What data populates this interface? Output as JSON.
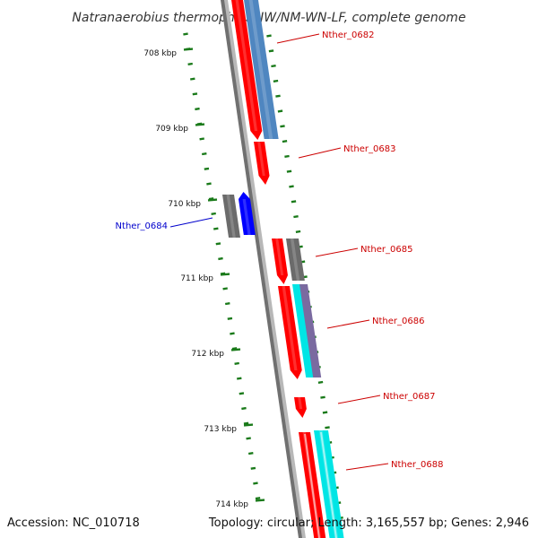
{
  "title": "Natranaerobius thermophilus JW/NM-WN-LF, complete genome",
  "footer": {
    "accession": "Accession: NC_010718",
    "summary": "Topology: circular; Length: 3,165,557 bp; Genes: 2,946"
  },
  "colors": {
    "backbone": "#8a8a8a",
    "tick": "#1a7a1a",
    "forward_label": "#cc0000",
    "reverse_label": "#0000cc",
    "cds_red": "#ff0000",
    "cds_blue_steel": "#4f86c0",
    "cds_gray": "#6b6b6b",
    "cds_cyan": "#00e5e5",
    "cds_purple": "#7a6aa0",
    "cds_blue": "#0000ff"
  },
  "ticks": [
    {
      "label": "708 kbp"
    },
    {
      "label": "709 kbp"
    },
    {
      "label": "710 kbp"
    },
    {
      "label": "711 kbp"
    },
    {
      "label": "712 kbp"
    },
    {
      "label": "713 kbp"
    },
    {
      "label": "714 kbp"
    }
  ],
  "gene_labels": [
    {
      "name": "Nther_0682",
      "strand": "forward"
    },
    {
      "name": "Nther_0683",
      "strand": "forward"
    },
    {
      "name": "Nther_0684",
      "strand": "reverse"
    },
    {
      "name": "Nther_0685",
      "strand": "forward"
    },
    {
      "name": "Nther_0686",
      "strand": "forward"
    },
    {
      "name": "Nther_0687",
      "strand": "forward"
    },
    {
      "name": "Nther_0688",
      "strand": "forward"
    }
  ],
  "features": [
    {
      "type": "CDS",
      "color": "cds_red"
    },
    {
      "type": "gene",
      "color": "cds_blue_steel"
    },
    {
      "type": "CDS",
      "color": "cds_red"
    },
    {
      "type": "gene",
      "color": "cds_gray"
    },
    {
      "type": "CDS",
      "color": "cds_blue"
    },
    {
      "type": "CDS",
      "color": "cds_red"
    },
    {
      "type": "gene",
      "color": "cds_gray"
    },
    {
      "type": "CDS",
      "color": "cds_red"
    },
    {
      "type": "gene",
      "color": "cds_cyan"
    },
    {
      "type": "gene",
      "color": "cds_purple"
    },
    {
      "type": "CDS",
      "color": "cds_red"
    },
    {
      "type": "CDS",
      "color": "cds_red"
    },
    {
      "type": "gene",
      "color": "cds_cyan"
    }
  ]
}
